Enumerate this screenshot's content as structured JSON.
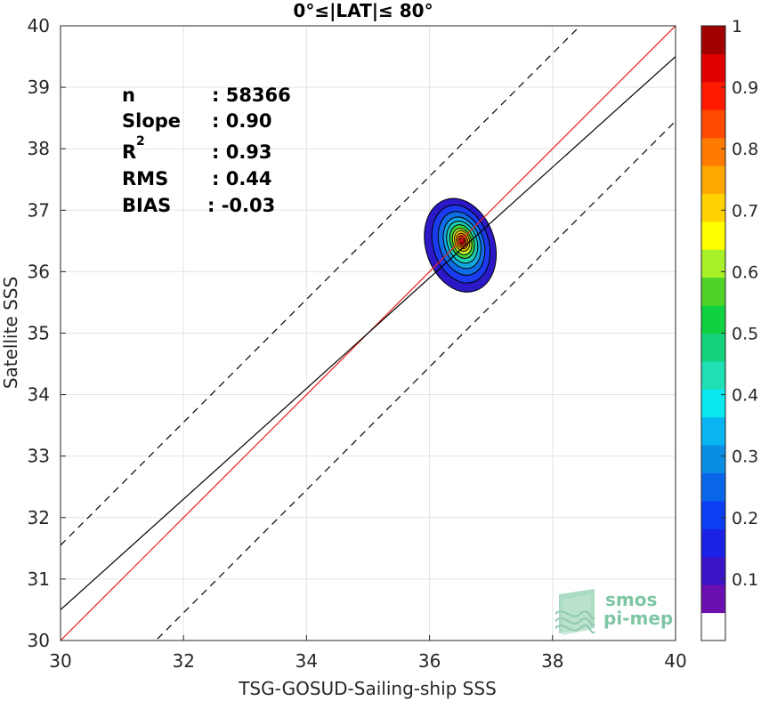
{
  "chart_data": {
    "type": "heatmap",
    "title": "0°≤|LAT|≤ 80°",
    "xlabel": "TSG-GOSUD-Sailing-ship SSS",
    "ylabel": "Satellite SSS",
    "xlim": [
      30,
      40
    ],
    "ylim": [
      30,
      40
    ],
    "xticks": [
      "30",
      "32",
      "34",
      "36",
      "38",
      "40"
    ],
    "yticks": [
      "30",
      "31",
      "32",
      "33",
      "34",
      "35",
      "36",
      "37",
      "38",
      "39",
      "40"
    ],
    "grid": true,
    "stats": {
      "n_label": "n",
      "n_value": ": 58366",
      "slope_label": "Slope",
      "slope_value": ": 0.90",
      "r2_label": "R",
      "r2_sup": "2",
      "r2_value": ": 0.93",
      "rms_label": "RMS",
      "rms_value": ": 0.44",
      "bias_label": "BIAS",
      "bias_value": ": -0.03"
    },
    "lines": [
      {
        "name": "identity",
        "color": "#e8231d",
        "dash": "solid",
        "x": [
          30,
          40
        ],
        "y": [
          30,
          40
        ]
      },
      {
        "name": "regression",
        "color": "#000000",
        "dash": "solid",
        "x": [
          30,
          40
        ],
        "y": [
          30.5,
          39.5
        ]
      },
      {
        "name": "upper-bound",
        "color": "#000000",
        "dash": "dashed",
        "x": [
          30,
          40
        ],
        "y": [
          31.55,
          41.55
        ]
      },
      {
        "name": "lower-bound",
        "color": "#000000",
        "dash": "dashed",
        "x": [
          30,
          40
        ],
        "y": [
          28.45,
          38.45
        ]
      }
    ],
    "density_center": {
      "x": 36.5,
      "y": 36.45
    },
    "density_levels": [
      {
        "level": 0.05,
        "color": "#2b18c6",
        "rx": 0.56,
        "ry": 0.78,
        "dx": 0.0,
        "dy": -0.02
      },
      {
        "level": 0.15,
        "color": "#1a3bf0",
        "rx": 0.45,
        "ry": 0.65,
        "dx": 0.01,
        "dy": 0.0
      },
      {
        "level": 0.25,
        "color": "#0f6de6",
        "rx": 0.36,
        "ry": 0.53,
        "dx": 0.02,
        "dy": 0.01
      },
      {
        "level": 0.35,
        "color": "#12a8e0",
        "rx": 0.29,
        "ry": 0.43,
        "dx": 0.03,
        "dy": 0.02
      },
      {
        "level": 0.45,
        "color": "#1fcfb4",
        "rx": 0.24,
        "ry": 0.35,
        "dx": 0.03,
        "dy": 0.03
      },
      {
        "level": 0.55,
        "color": "#3fd43c",
        "rx": 0.19,
        "ry": 0.28,
        "dx": 0.03,
        "dy": 0.04
      },
      {
        "level": 0.65,
        "color": "#c8f02c",
        "rx": 0.15,
        "ry": 0.22,
        "dx": 0.03,
        "dy": 0.04
      },
      {
        "level": 0.72,
        "color": "#ffd400",
        "rx": 0.12,
        "ry": 0.17,
        "dx": 0.03,
        "dy": 0.05
      },
      {
        "level": 0.8,
        "color": "#ff8c00",
        "rx": 0.09,
        "ry": 0.13,
        "dx": 0.03,
        "dy": 0.05
      },
      {
        "level": 0.88,
        "color": "#ff3a10",
        "rx": 0.06,
        "ry": 0.09,
        "dx": 0.03,
        "dy": 0.05
      },
      {
        "level": 0.95,
        "color": "#c30010",
        "rx": 0.035,
        "ry": 0.05,
        "dx": 0.03,
        "dy": 0.05
      }
    ],
    "colorbar": {
      "ticks": [
        "0.1",
        "0.2",
        "0.3",
        "0.4",
        "0.5",
        "0.6",
        "0.7",
        "0.8",
        "0.9",
        "1"
      ],
      "tick_values": [
        0.1,
        0.2,
        0.3,
        0.4,
        0.5,
        0.6,
        0.7,
        0.8,
        0.9,
        1.0
      ],
      "colors": [
        "#ffffff",
        "#6a0fb0",
        "#3a15c8",
        "#1a22e6",
        "#0a3ff2",
        "#0a66e8",
        "#0a8ee4",
        "#0ab4f0",
        "#0ae8f0",
        "#1ee0b4",
        "#14d27a",
        "#10d240",
        "#50d228",
        "#a8f028",
        "#ffff00",
        "#ffd200",
        "#ffa800",
        "#ff7a00",
        "#ff4a00",
        "#ff1a00",
        "#e00000",
        "#a00000"
      ]
    }
  },
  "logo": {
    "line1": "smos",
    "line2": "pi-mep"
  }
}
